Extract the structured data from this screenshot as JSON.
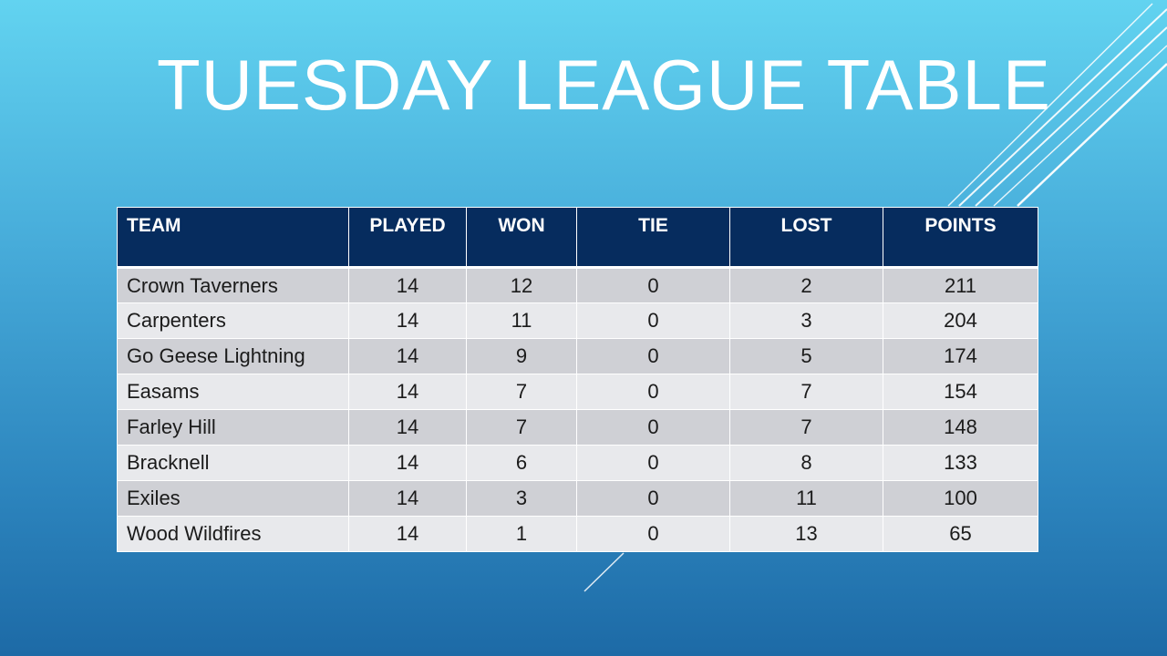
{
  "slide": {
    "title": "TUESDAY LEAGUE TABLE"
  },
  "table": {
    "headers": [
      "TEAM",
      "PLAYED",
      "WON",
      "TIE",
      "LOST",
      "POINTS"
    ],
    "rows": [
      [
        "Crown Taverners",
        "14",
        "12",
        "0",
        "2",
        "211"
      ],
      [
        "Carpenters",
        "14",
        "11",
        "0",
        "3",
        "204"
      ],
      [
        "Go Geese Lightning",
        "14",
        "9",
        "0",
        "5",
        "174"
      ],
      [
        "Easams",
        "14",
        "7",
        "0",
        "7",
        "154"
      ],
      [
        "Farley Hill",
        "14",
        "7",
        "0",
        "7",
        "148"
      ],
      [
        "Bracknell",
        "14",
        "6",
        "0",
        "8",
        "133"
      ],
      [
        "Exiles",
        "14",
        "3",
        "0",
        "11",
        "100"
      ],
      [
        "Wood Wildfires",
        "14",
        "1",
        "0",
        "13",
        "65"
      ]
    ]
  },
  "colors": {
    "header_background": "#062c5e",
    "row_odd": "#cfd0d5",
    "row_even": "#e8e9ec",
    "title_text": "#ffffff"
  }
}
